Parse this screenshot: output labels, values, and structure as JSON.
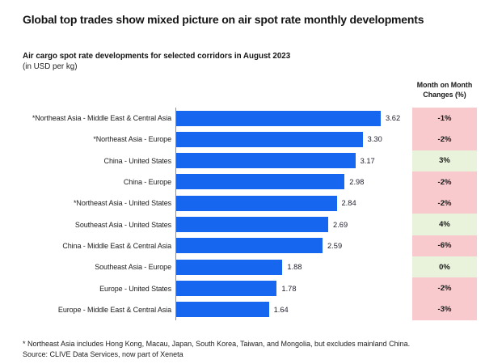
{
  "header": {
    "title": "Global top trades show mixed picture on air spot rate monthly developments"
  },
  "chart_data": {
    "type": "bar",
    "orientation": "horizontal",
    "title": "Air cargo spot rate developments for selected corridors in August 2023",
    "unit_note": "(in USD per kg)",
    "xlim": [
      0,
      4
    ],
    "change_column_header_line1": "Month on Month",
    "change_column_header_line2": "Changes (%)",
    "rows": [
      {
        "label": "*Northeast Asia - Middle East & Central Asia",
        "value": 3.62,
        "change": "-1%",
        "change_value": -1
      },
      {
        "label": "*Northeast Asia - Europe",
        "value": 3.3,
        "change": "-2%",
        "change_value": -2
      },
      {
        "label": "China - United States",
        "value": 3.17,
        "change": "3%",
        "change_value": 3
      },
      {
        "label": "China - Europe",
        "value": 2.98,
        "change": "-2%",
        "change_value": -2
      },
      {
        "label": "*Northeast Asia - United States",
        "value": 2.84,
        "change": "-2%",
        "change_value": -2
      },
      {
        "label": "Southeast Asia - United States",
        "value": 2.69,
        "change": "4%",
        "change_value": 4
      },
      {
        "label": "China - Middle East & Central Asia",
        "value": 2.59,
        "change": "-6%",
        "change_value": -6
      },
      {
        "label": "Southeast Asia - Europe",
        "value": 1.88,
        "change": "0%",
        "change_value": 0
      },
      {
        "label": "Europe - United States",
        "value": 1.78,
        "change": "-2%",
        "change_value": -2
      },
      {
        "label": "Europe - Middle East & Central Asia",
        "value": 1.64,
        "change": "-3%",
        "change_value": -3
      }
    ],
    "colors": {
      "bar": "#1666f0",
      "negative_change_bg": "#f8cacd",
      "positive_change_bg": "#e9f3dc",
      "axis_line": "#8f8f8f"
    }
  },
  "footnotes": {
    "note": "* Northeast Asia includes Hong Kong, Macau, Japan, South Korea, Taiwan, and Mongolia, but excludes mainland China.",
    "source": "Source: CLIVE Data Services, now part of Xeneta"
  }
}
